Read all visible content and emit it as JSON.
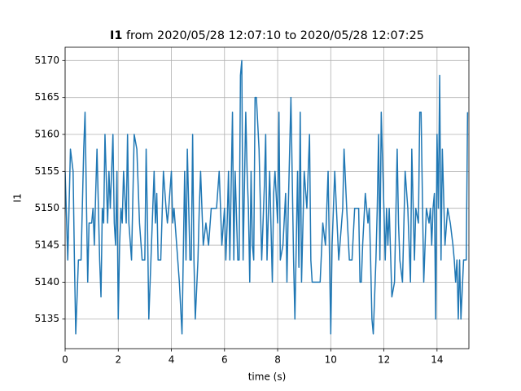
{
  "chart_data": {
    "type": "line",
    "title_series": "I1",
    "title": "from 2020/05/28 12:07:10 to 2020/05/28 12:07:25",
    "x_label": "time (s)",
    "y_label": "I1",
    "color": "#1f77b4",
    "grid": true,
    "xlim": [
      0,
      15.2
    ],
    "ylim": [
      5131,
      5171.8
    ],
    "xticks": [
      0,
      2,
      4,
      6,
      8,
      10,
      12,
      14
    ],
    "yticks": [
      5135,
      5140,
      5145,
      5150,
      5155,
      5160,
      5165,
      5170
    ],
    "x": [
      0.0,
      0.1,
      0.2,
      0.3,
      0.35,
      0.4,
      0.5,
      0.6,
      0.7,
      0.75,
      0.85,
      0.9,
      1.0,
      1.05,
      1.1,
      1.15,
      1.2,
      1.3,
      1.35,
      1.4,
      1.45,
      1.5,
      1.6,
      1.65,
      1.7,
      1.8,
      1.85,
      1.9,
      1.95,
      2.0,
      2.05,
      2.1,
      2.15,
      2.2,
      2.3,
      2.35,
      2.4,
      2.5,
      2.6,
      2.7,
      2.8,
      2.9,
      3.0,
      3.05,
      3.1,
      3.15,
      3.25,
      3.35,
      3.4,
      3.45,
      3.5,
      3.6,
      3.7,
      3.8,
      3.85,
      3.9,
      4.0,
      4.05,
      4.1,
      4.2,
      4.3,
      4.4,
      4.5,
      4.55,
      4.6,
      4.7,
      4.75,
      4.8,
      4.85,
      4.9,
      5.0,
      5.05,
      5.1,
      5.2,
      5.3,
      5.4,
      5.5,
      5.6,
      5.7,
      5.8,
      5.9,
      6.0,
      6.05,
      6.1,
      6.15,
      6.2,
      6.3,
      6.35,
      6.4,
      6.5,
      6.55,
      6.6,
      6.65,
      6.7,
      6.8,
      6.85,
      6.9,
      6.95,
      7.0,
      7.05,
      7.1,
      7.15,
      7.2,
      7.3,
      7.4,
      7.5,
      7.55,
      7.6,
      7.7,
      7.8,
      7.85,
      7.9,
      8.0,
      8.05,
      8.1,
      8.2,
      8.3,
      8.35,
      8.4,
      8.5,
      8.6,
      8.65,
      8.75,
      8.8,
      8.85,
      8.9,
      9.0,
      9.1,
      9.2,
      9.25,
      9.3,
      9.4,
      9.5,
      9.6,
      9.7,
      9.8,
      9.9,
      10.0,
      10.05,
      10.15,
      10.3,
      10.45,
      10.5,
      10.6,
      10.7,
      10.8,
      10.9,
      11.05,
      11.1,
      11.15,
      11.2,
      11.3,
      11.35,
      11.4,
      11.45,
      11.5,
      11.55,
      11.6,
      11.65,
      11.7,
      11.75,
      11.8,
      11.85,
      11.9,
      12.0,
      12.05,
      12.1,
      12.15,
      12.2,
      12.3,
      12.4,
      12.5,
      12.55,
      12.6,
      12.7,
      12.8,
      12.9,
      13.0,
      13.05,
      13.15,
      13.2,
      13.3,
      13.35,
      13.4,
      13.5,
      13.6,
      13.7,
      13.75,
      13.8,
      13.85,
      13.9,
      13.95,
      14.0,
      14.05,
      14.1,
      14.15,
      14.2,
      14.3,
      14.4,
      14.5,
      14.6,
      14.65,
      14.7,
      14.75,
      14.8,
      14.85,
      14.9,
      15.0,
      15.1,
      15.15
    ],
    "values": [
      5155,
      5143,
      5158,
      5155,
      5143,
      5133,
      5143,
      5143,
      5158,
      5163,
      5140,
      5148,
      5148,
      5150,
      5145,
      5152,
      5158,
      5143,
      5138,
      5150,
      5148,
      5160,
      5148,
      5155,
      5150,
      5160,
      5148,
      5145,
      5155,
      5135,
      5145,
      5150,
      5148,
      5155,
      5148,
      5160,
      5148,
      5143,
      5160,
      5158,
      5148,
      5143,
      5143,
      5158,
      5148,
      5135,
      5145,
      5155,
      5148,
      5152,
      5143,
      5143,
      5155,
      5150,
      5148,
      5150,
      5155,
      5148,
      5150,
      5145,
      5140,
      5133,
      5155,
      5143,
      5158,
      5143,
      5143,
      5160,
      5143,
      5135,
      5143,
      5150,
      5155,
      5145,
      5148,
      5145,
      5150,
      5150,
      5150,
      5155,
      5145,
      5150,
      5143,
      5148,
      5155,
      5143,
      5163,
      5143,
      5155,
      5143,
      5143,
      5168,
      5170,
      5143,
      5163,
      5155,
      5150,
      5140,
      5155,
      5145,
      5143,
      5165,
      5165,
      5158,
      5143,
      5153,
      5160,
      5143,
      5155,
      5140,
      5152,
      5155,
      5148,
      5163,
      5143,
      5145,
      5152,
      5140,
      5150,
      5165,
      5143,
      5135,
      5155,
      5142,
      5163,
      5140,
      5155,
      5150,
      5160,
      5143,
      5140,
      5140,
      5140,
      5140,
      5148,
      5145,
      5155,
      5133,
      5145,
      5155,
      5143,
      5150,
      5158,
      5150,
      5143,
      5143,
      5150,
      5150,
      5140,
      5140,
      5145,
      5152,
      5150,
      5148,
      5150,
      5143,
      5135,
      5133,
      5138,
      5143,
      5150,
      5160,
      5143,
      5163,
      5150,
      5143,
      5150,
      5145,
      5150,
      5138,
      5140,
      5158,
      5148,
      5143,
      5140,
      5155,
      5150,
      5140,
      5158,
      5143,
      5150,
      5148,
      5163,
      5163,
      5140,
      5150,
      5148,
      5150,
      5145,
      5150,
      5152,
      5135,
      5160,
      5150,
      5168,
      5143,
      5158,
      5145,
      5150,
      5148,
      5145,
      5143,
      5140,
      5143,
      5135,
      5143,
      5135,
      5143,
      5143,
      5163
    ]
  }
}
